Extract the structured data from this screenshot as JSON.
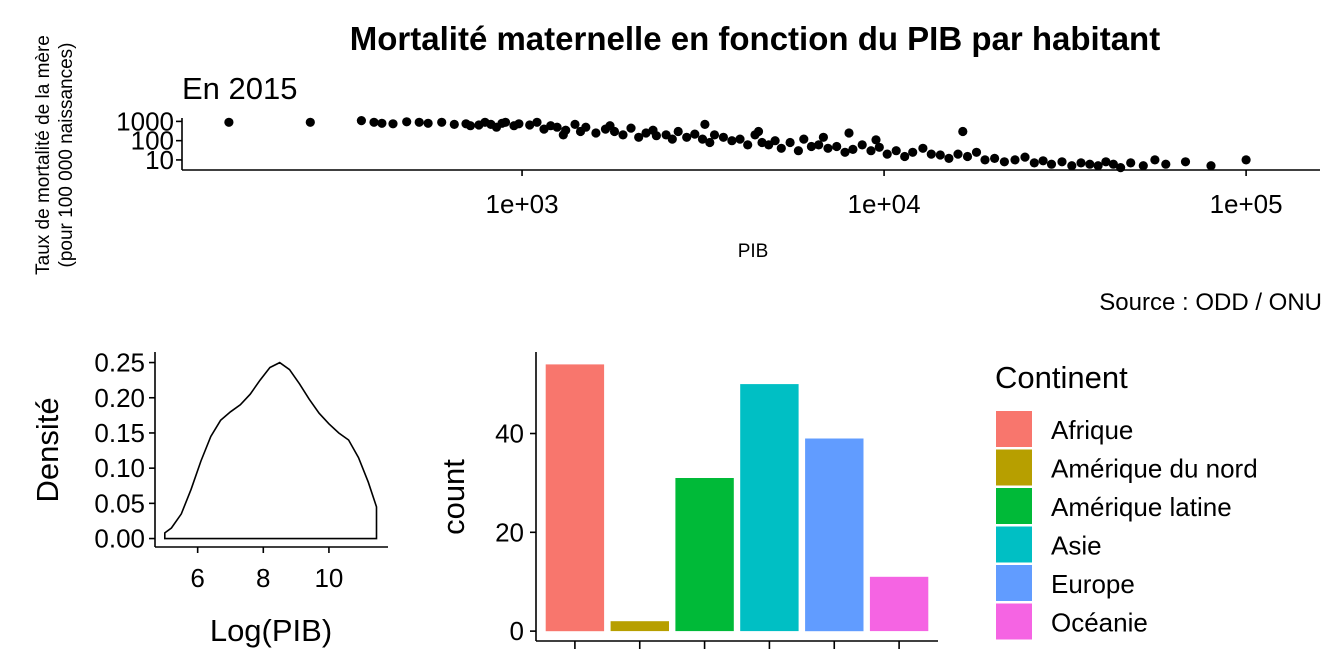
{
  "chart_data": [
    {
      "type": "scatter",
      "title": "Mortalité maternelle en fonction du PIB par habitant",
      "subtitle": "En 2015",
      "xlabel": "PIB",
      "ylabel_line1": "Taux de mortalité de la mère",
      "ylabel_line2": "(pour 100 000 naissances)",
      "caption": "Source : ODD / ONU",
      "x_scale": "log10",
      "y_scale": "log10",
      "xlim": [
        115,
        160000
      ],
      "ylim": [
        3,
        1500
      ],
      "x_ticks": [
        1000,
        10000,
        100000
      ],
      "x_tick_labels": [
        "1e+03",
        "1e+04",
        "1e+05"
      ],
      "y_ticks": [
        10,
        100,
        1000
      ],
      "y_tick_labels": [
        "10",
        "100",
        "1000"
      ],
      "points": [
        [
          155,
          900
        ],
        [
          260,
          900
        ],
        [
          360,
          1100
        ],
        [
          390,
          900
        ],
        [
          410,
          800
        ],
        [
          440,
          750
        ],
        [
          480,
          950
        ],
        [
          520,
          900
        ],
        [
          550,
          800
        ],
        [
          600,
          900
        ],
        [
          650,
          700
        ],
        [
          700,
          750
        ],
        [
          720,
          600
        ],
        [
          760,
          650
        ],
        [
          790,
          900
        ],
        [
          820,
          700
        ],
        [
          850,
          500
        ],
        [
          880,
          800
        ],
        [
          900,
          900
        ],
        [
          950,
          600
        ],
        [
          980,
          750
        ],
        [
          1050,
          650
        ],
        [
          1100,
          900
        ],
        [
          1150,
          400
        ],
        [
          1200,
          600
        ],
        [
          1250,
          500
        ],
        [
          1320,
          350
        ],
        [
          1400,
          700
        ],
        [
          1450,
          300
        ],
        [
          1500,
          500
        ],
        [
          1600,
          250
        ],
        [
          1700,
          400
        ],
        [
          1800,
          300
        ],
        [
          1900,
          200
        ],
        [
          2000,
          450
        ],
        [
          2100,
          150
        ],
        [
          2200,
          250
        ],
        [
          2350,
          180
        ],
        [
          2500,
          200
        ],
        [
          2600,
          120
        ],
        [
          2700,
          300
        ],
        [
          2850,
          150
        ],
        [
          3000,
          220
        ],
        [
          3150,
          120
        ],
        [
          3300,
          80
        ],
        [
          3400,
          200
        ],
        [
          3600,
          150
        ],
        [
          3800,
          100
        ],
        [
          4000,
          120
        ],
        [
          4200,
          60
        ],
        [
          4400,
          200
        ],
        [
          4600,
          80
        ],
        [
          4800,
          60
        ],
        [
          5000,
          100
        ],
        [
          5200,
          40
        ],
        [
          5500,
          80
        ],
        [
          5800,
          30
        ],
        [
          6000,
          120
        ],
        [
          6300,
          50
        ],
        [
          6600,
          60
        ],
        [
          7000,
          40
        ],
        [
          7400,
          50
        ],
        [
          7800,
          25
        ],
        [
          8200,
          35
        ],
        [
          8700,
          60
        ],
        [
          9200,
          30
        ],
        [
          9700,
          45
        ],
        [
          10200,
          20
        ],
        [
          10800,
          30
        ],
        [
          11400,
          15
        ],
        [
          12000,
          25
        ],
        [
          12800,
          40
        ],
        [
          13500,
          20
        ],
        [
          14300,
          18
        ],
        [
          15100,
          12
        ],
        [
          16000,
          20
        ],
        [
          17000,
          15
        ],
        [
          18000,
          25
        ],
        [
          19000,
          10
        ],
        [
          20200,
          12
        ],
        [
          21500,
          8
        ],
        [
          23000,
          10
        ],
        [
          24500,
          14
        ],
        [
          26000,
          7
        ],
        [
          27500,
          9
        ],
        [
          29000,
          6
        ],
        [
          31000,
          8
        ],
        [
          33000,
          5
        ],
        [
          35000,
          7
        ],
        [
          37000,
          6
        ],
        [
          39000,
          5
        ],
        [
          41000,
          8
        ],
        [
          43000,
          6
        ],
        [
          45000,
          4
        ],
        [
          48000,
          7
        ],
        [
          52000,
          5
        ],
        [
          56000,
          10
        ],
        [
          60000,
          6
        ],
        [
          68000,
          8
        ],
        [
          80000,
          5
        ],
        [
          100000,
          10
        ],
        [
          1300,
          200
        ],
        [
          1750,
          600
        ],
        [
          2300,
          350
        ],
        [
          3200,
          700
        ],
        [
          4500,
          300
        ],
        [
          6800,
          150
        ],
        [
          8000,
          250
        ],
        [
          9500,
          110
        ],
        [
          16500,
          300
        ]
      ]
    },
    {
      "type": "area",
      "xlabel": "Log(PIB)",
      "ylabel": "Densité",
      "xlim": [
        4.7,
        11.8
      ],
      "ylim": [
        -0.012,
        0.265
      ],
      "x_ticks": [
        6,
        8,
        10
      ],
      "x_tick_labels": [
        "6",
        "8",
        "10"
      ],
      "y_ticks": [
        0,
        0.05,
        0.1,
        0.15,
        0.2,
        0.25
      ],
      "y_tick_labels": [
        "0.00",
        "0.05",
        "0.10",
        "0.15",
        "0.20",
        "0.25"
      ],
      "x": [
        5.0,
        5.2,
        5.5,
        5.8,
        6.1,
        6.4,
        6.7,
        7.0,
        7.3,
        7.6,
        7.9,
        8.2,
        8.5,
        8.8,
        9.1,
        9.4,
        9.7,
        10.0,
        10.3,
        10.6,
        10.9,
        11.2,
        11.45
      ],
      "y": [
        0.008,
        0.015,
        0.035,
        0.07,
        0.11,
        0.145,
        0.168,
        0.18,
        0.19,
        0.205,
        0.225,
        0.243,
        0.25,
        0.24,
        0.22,
        0.198,
        0.178,
        0.163,
        0.15,
        0.14,
        0.115,
        0.08,
        0.045
      ]
    },
    {
      "type": "bar",
      "ylabel": "count",
      "ylim": [
        -2,
        56.5
      ],
      "y_ticks": [
        0,
        20,
        40
      ],
      "y_tick_labels": [
        "0",
        "20",
        "40"
      ],
      "categories": [
        "Afrique",
        "Amérique du nord",
        "Amérique latine",
        "Asie",
        "Europe",
        "Océanie"
      ],
      "values": [
        54,
        2,
        31,
        50,
        39,
        11
      ],
      "colors": [
        "#F8766D",
        "#B79F00",
        "#00BA38",
        "#00BFC4",
        "#619CFF",
        "#F564E3"
      ],
      "legend_title": "Continent",
      "legend_position": "right"
    }
  ]
}
